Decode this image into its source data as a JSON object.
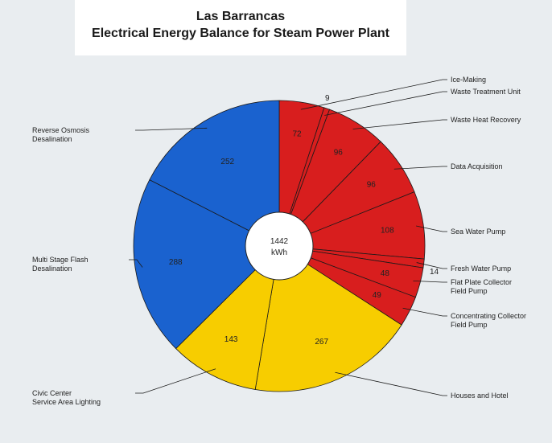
{
  "chart_data": {
    "type": "pie",
    "title": "Las Barrancas",
    "subtitle": "Electrical Energy Balance for Steam Power Plant",
    "total_label": "1442",
    "unit": "kWh",
    "slices": [
      {
        "label": "Ice-Making",
        "value": 72,
        "value_label": "72",
        "color": "#d81e1e"
      },
      {
        "label": "Waste Treatment Unit",
        "value": 9,
        "value_label": "9",
        "color": "#d81e1e"
      },
      {
        "label": "Waste Heat Recovery",
        "value": 96,
        "value_label": "96",
        "color": "#d81e1e"
      },
      {
        "label": "Data Acquisition",
        "value": 96,
        "value_label": "96",
        "color": "#d81e1e"
      },
      {
        "label": "Sea Water Pump",
        "value": 108,
        "value_label": "108",
        "color": "#d81e1e"
      },
      {
        "label": "Fresh Water Pump",
        "value": 14,
        "value_label": "14",
        "color": "#d81e1e"
      },
      {
        "label": "Flat Plate Collector\nField Pump",
        "value": 48,
        "value_label": "48",
        "color": "#d81e1e"
      },
      {
        "label": "Concentrating Collector\nField Pump",
        "value": 49,
        "value_label": "49",
        "color": "#d81e1e"
      },
      {
        "label": "Houses and Hotel",
        "value": 267,
        "value_label": "267",
        "color": "#f7cd00"
      },
      {
        "label": "Civic Center\nService Area Lighting",
        "value": 143,
        "value_label": "143",
        "color": "#f7cd00"
      },
      {
        "label": "Multi Stage Flash\nDesalination",
        "value": 288,
        "value_label": "288",
        "color": "#1a62cf"
      },
      {
        "label": "Reverse Osmosis\nDesalination",
        "value": 252,
        "value_label": "252",
        "color": "#1a62cf"
      }
    ]
  }
}
